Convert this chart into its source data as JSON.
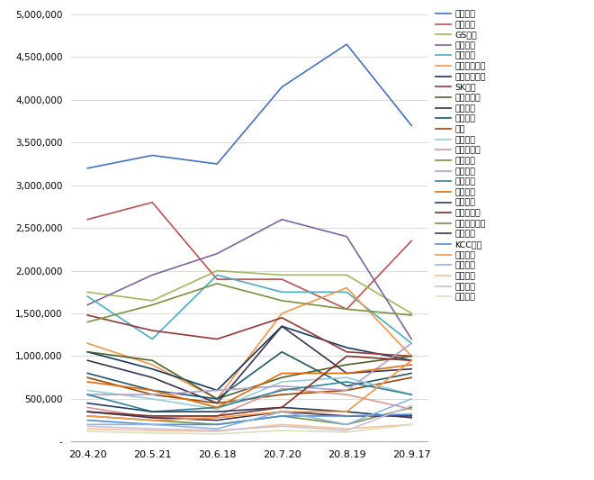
{
  "x_labels": [
    "20.4.20",
    "20.5.21",
    "20.6.18",
    "20.7.20",
    "20.8.19",
    "20.9.17"
  ],
  "series": [
    {
      "name": "현대건설",
      "color": "#4472C4",
      "values": [
        3200000,
        3350000,
        3250000,
        4150000,
        4650000,
        3700000
      ]
    },
    {
      "name": "삼성물산",
      "color": "#C0504D",
      "values": [
        2600000,
        2800000,
        1900000,
        1900000,
        1550000,
        2350000
      ]
    },
    {
      "name": "GS건설",
      "color": "#9BBB59",
      "values": [
        1750000,
        1650000,
        2000000,
        1950000,
        1950000,
        1500000
      ]
    },
    {
      "name": "대우건설",
      "color": "#8064A2",
      "values": [
        1600000,
        1950000,
        2200000,
        2600000,
        2400000,
        1200000
      ]
    },
    {
      "name": "대림산업",
      "color": "#4BACC6",
      "values": [
        1700000,
        1200000,
        1950000,
        1750000,
        1750000,
        1150000
      ]
    },
    {
      "name": "현대산업개발",
      "color": "#F79646",
      "values": [
        1150000,
        900000,
        500000,
        1500000,
        1800000,
        1000000
      ]
    },
    {
      "name": "코오롱글로벌",
      "color": "#17375E",
      "values": [
        1050000,
        850000,
        600000,
        1350000,
        1100000,
        950000
      ]
    },
    {
      "name": "SK건설",
      "color": "#953735",
      "values": [
        1480000,
        1300000,
        1200000,
        1450000,
        1050000,
        1000000
      ]
    },
    {
      "name": "포스코건설",
      "color": "#4F6228",
      "values": [
        1050000,
        950000,
        500000,
        750000,
        900000,
        1000000
      ]
    },
    {
      "name": "롯데건설",
      "color": "#3F3151",
      "values": [
        950000,
        750000,
        450000,
        1350000,
        800000,
        850000
      ]
    },
    {
      "name": "동부건설",
      "color": "#215868",
      "values": [
        800000,
        600000,
        500000,
        1050000,
        650000,
        800000
      ]
    },
    {
      "name": "부영",
      "color": "#974706",
      "values": [
        750000,
        550000,
        450000,
        550000,
        600000,
        750000
      ]
    },
    {
      "name": "쌍용건설",
      "color": "#92CDDC",
      "values": [
        600000,
        500000,
        380000,
        700000,
        750000,
        550000
      ]
    },
    {
      "name": "신세계건설",
      "color": "#D99694",
      "values": [
        400000,
        280000,
        300000,
        620000,
        550000,
        380000
      ]
    },
    {
      "name": "호반건설",
      "color": "#77933C",
      "values": [
        1400000,
        1600000,
        1850000,
        1650000,
        1550000,
        1480000
      ]
    },
    {
      "name": "한화건설",
      "color": "#B1A0C7",
      "values": [
        550000,
        550000,
        600000,
        650000,
        600000,
        1150000
      ]
    },
    {
      "name": "계룡건설",
      "color": "#31849B",
      "values": [
        550000,
        350000,
        400000,
        600000,
        700000,
        550000
      ]
    },
    {
      "name": "태영건설",
      "color": "#E36C09",
      "values": [
        700000,
        600000,
        400000,
        800000,
        800000,
        900000
      ]
    },
    {
      "name": "서희건설",
      "color": "#243F60",
      "values": [
        450000,
        350000,
        350000,
        400000,
        350000,
        280000
      ]
    },
    {
      "name": "이테크건설",
      "color": "#823122",
      "values": [
        350000,
        300000,
        300000,
        400000,
        1000000,
        950000
      ]
    },
    {
      "name": "신원종합개발",
      "color": "#76933C",
      "values": [
        300000,
        250000,
        200000,
        300000,
        200000,
        400000
      ]
    },
    {
      "name": "한신공영",
      "color": "#403152",
      "values": [
        350000,
        280000,
        250000,
        350000,
        300000,
        300000
      ]
    },
    {
      "name": "KCC건설",
      "color": "#538DD5",
      "values": [
        250000,
        200000,
        200000,
        300000,
        300000,
        320000
      ]
    },
    {
      "name": "금호건설",
      "color": "#F79646",
      "values": [
        300000,
        250000,
        280000,
        350000,
        350000,
        950000
      ]
    },
    {
      "name": "남광토건",
      "color": "#8DB4E2",
      "values": [
        200000,
        200000,
        150000,
        350000,
        200000,
        500000
      ]
    },
    {
      "name": "일성건설",
      "color": "#FAC090",
      "values": [
        150000,
        130000,
        120000,
        200000,
        150000,
        200000
      ]
    },
    {
      "name": "두산건설",
      "color": "#CCC0DA",
      "values": [
        180000,
        150000,
        130000,
        180000,
        130000,
        420000
      ]
    },
    {
      "name": "남화토건",
      "color": "#D7E4BC",
      "values": [
        120000,
        100000,
        90000,
        130000,
        110000,
        200000
      ]
    }
  ],
  "ylim": [
    0,
    5000000
  ],
  "yticks": [
    0,
    500000,
    1000000,
    1500000,
    2000000,
    2500000,
    3000000,
    3500000,
    4000000,
    4500000,
    5000000
  ],
  "background_color": "#FFFFFF",
  "grid_color": "#D3D3D3"
}
